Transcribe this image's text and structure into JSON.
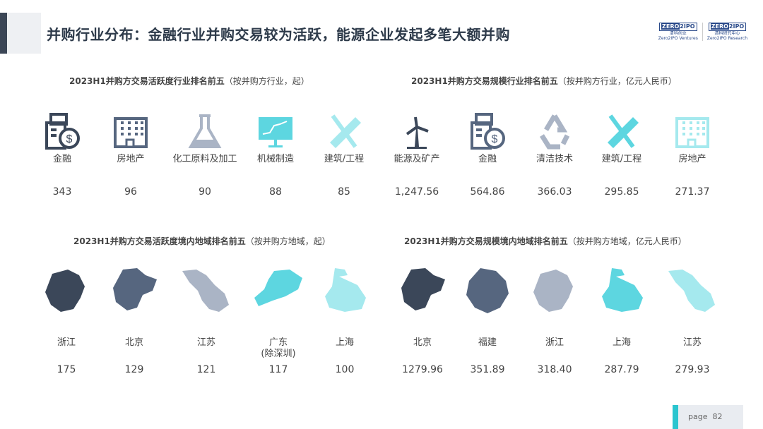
{
  "title": "并购行业分布：金融行业并购交易较为活跃，能源企业发起多笔大额并购",
  "logos": [
    {
      "brand_a": "ZERO",
      "brand_b": "2",
      "brand_c": "IPO",
      "cn": "清科创业",
      "en": "Zero2IPO Ventures"
    },
    {
      "brand_a": "ZERO",
      "brand_b": "2",
      "brand_c": "IPO",
      "cn": "清科研究中心",
      "en": "Zero2IPO Research"
    }
  ],
  "colors": {
    "dark": "#3b4759",
    "mid": "#56667f",
    "gray": "#aab4c5",
    "cyan": "#5dd6e0",
    "light_cyan": "#a5e9ee"
  },
  "sections": [
    {
      "title_bold": "2023H1并购方交易活跃度行业排名前五",
      "title_note": "（按并购方行业，起）",
      "items": [
        {
          "icon": "finance-icon",
          "label": "金融",
          "value": "343",
          "color": "dark"
        },
        {
          "icon": "building-icon",
          "label": "房地产",
          "value": "96",
          "color": "mid"
        },
        {
          "icon": "flask-icon",
          "label": "化工原料及加工",
          "value": "90",
          "color": "gray"
        },
        {
          "icon": "monitor-chart-icon",
          "label": "机械制造",
          "value": "88",
          "color": "cyan"
        },
        {
          "icon": "ruler-compass-icon",
          "label": "建筑/工程",
          "value": "85",
          "color": "light_cyan"
        }
      ]
    },
    {
      "title_bold": "2023H1并购方交易规模行业排名前五",
      "title_note": "（按并购方行业，亿元人民币）",
      "items": [
        {
          "icon": "wind-turbine-icon",
          "label": "能源及矿产",
          "value": "1,247.56",
          "color": "dark"
        },
        {
          "icon": "finance-icon",
          "label": "金融",
          "value": "564.86",
          "color": "mid"
        },
        {
          "icon": "recycle-icon",
          "label": "清洁技术",
          "value": "366.03",
          "color": "gray"
        },
        {
          "icon": "ruler-compass-icon",
          "label": "建筑/工程",
          "value": "295.85",
          "color": "cyan"
        },
        {
          "icon": "building-icon",
          "label": "房地产",
          "value": "271.37",
          "color": "light_cyan"
        }
      ]
    },
    {
      "title_bold": "2023H1并购方交易活跃度境内地域排名前五",
      "title_note": "（按并购方地域，起）",
      "items": [
        {
          "icon": "zhejiang-map-icon",
          "label": "浙江",
          "value": "175",
          "color": "dark"
        },
        {
          "icon": "beijing-map-icon",
          "label": "北京",
          "value": "129",
          "color": "mid"
        },
        {
          "icon": "jiangsu-map-icon",
          "label": "江苏",
          "value": "121",
          "color": "gray"
        },
        {
          "icon": "guangdong-map-icon",
          "label": "广东\n(除深圳)",
          "value": "117",
          "color": "cyan"
        },
        {
          "icon": "shanghai-map-icon",
          "label": "上海",
          "value": "100",
          "color": "light_cyan"
        }
      ]
    },
    {
      "title_bold": "2023H1并购方交易规模境内地域排名前五",
      "title_note": "（按并购方地域，亿元人民币）",
      "items": [
        {
          "icon": "beijing-map-icon",
          "label": "北京",
          "value": "1279.96",
          "color": "dark"
        },
        {
          "icon": "fujian-map-icon",
          "label": "福建",
          "value": "351.89",
          "color": "mid"
        },
        {
          "icon": "zhejiang-map-icon",
          "label": "浙江",
          "value": "318.40",
          "color": "gray"
        },
        {
          "icon": "shanghai-map-icon",
          "label": "上海",
          "value": "287.79",
          "color": "cyan"
        },
        {
          "icon": "jiangsu-map-icon",
          "label": "江苏",
          "value": "279.93",
          "color": "light_cyan"
        }
      ]
    }
  ],
  "page": {
    "label": "page",
    "number": "82"
  }
}
